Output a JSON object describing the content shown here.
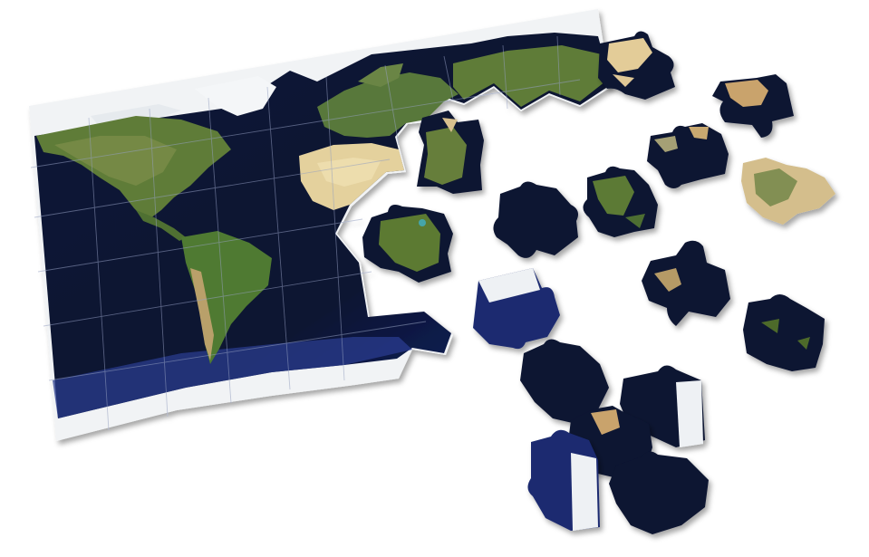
{
  "scene": {
    "subject": "world-map-jigsaw-puzzle",
    "board_state": "partially-assembled",
    "colors": {
      "background": "#ffffff",
      "ocean": "#0b1330",
      "ocean_deep": "#08102a",
      "ocean_light": "#2d4296",
      "land_green": "#5b7a34",
      "land_dark_green": "#36502a",
      "desert": "#e7d3a0",
      "ice": "#f1f3f5",
      "seam": "#95a0c0"
    }
  }
}
